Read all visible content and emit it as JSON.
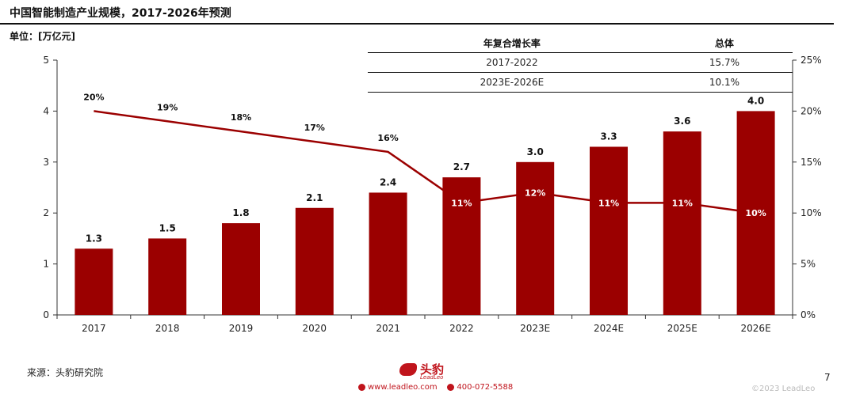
{
  "header": {
    "title": "中国智能制造产业规模，2017-2026年预测",
    "unit": "单位：[万亿元]"
  },
  "table": {
    "headers": [
      "年复合增长率",
      "总体"
    ],
    "rows": [
      [
        "2017-2022",
        "15.7%"
      ],
      [
        "2023E-2026E",
        "10.1%"
      ]
    ]
  },
  "chart_data": {
    "type": "bar",
    "categories": [
      "2017",
      "2018",
      "2019",
      "2020",
      "2021",
      "2022",
      "2023E",
      "2024E",
      "2025E",
      "2026E"
    ],
    "series": [
      {
        "values": [
          1.3,
          1.5,
          1.8,
          2.1,
          2.4,
          2.7,
          3.0,
          3.3,
          3.6,
          4.0
        ],
        "color": "#9b0000",
        "axis": "left",
        "kind": "bar"
      },
      {
        "values": [
          20,
          19,
          18,
          17,
          16,
          11,
          12,
          11,
          11,
          10
        ],
        "color": "#9b0000",
        "axis": "right",
        "kind": "line"
      }
    ],
    "bar_labels": [
      "1.3",
      "1.5",
      "1.8",
      "2.1",
      "2.4",
      "2.7",
      "3.0",
      "3.3",
      "3.6",
      "4.0"
    ],
    "line_labels": [
      "20%",
      "19%",
      "18%",
      "17%",
      "16%",
      "11%",
      "12%",
      "11%",
      "11%",
      "10%"
    ],
    "ylim": [
      0,
      5
    ],
    "y_ticks": [
      "0",
      "1",
      "2",
      "3",
      "4",
      "5"
    ],
    "y2lim": [
      0,
      25
    ],
    "y2_ticks": [
      "0%",
      "5%",
      "10%",
      "15%",
      "20%",
      "25%"
    ],
    "grid": false
  },
  "footer": {
    "source": "来源：头豹研究院",
    "page_number": "7",
    "brand_name": "头豹",
    "brand_sub": "LeadLeo",
    "website": "www.leadleo.com",
    "phone": "400-072-5588",
    "copyright": "©2023 LeadLeo"
  },
  "colors": {
    "bar": "#9b0000",
    "line": "#9b0000",
    "brand": "#c0141c"
  }
}
